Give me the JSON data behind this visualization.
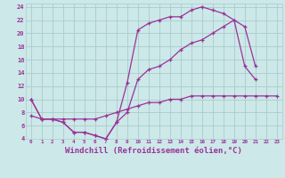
{
  "bg_color": "#cce8e8",
  "grid_color": "#aacccc",
  "line_color": "#993399",
  "xlabel": "Windchill (Refroidissement éolien,°C)",
  "xlabel_fontsize": 6.5,
  "xlim": [
    -0.5,
    23.5
  ],
  "ylim": [
    4,
    24.5
  ],
  "xticks": [
    0,
    1,
    2,
    3,
    4,
    5,
    6,
    7,
    8,
    9,
    10,
    11,
    12,
    13,
    14,
    15,
    16,
    17,
    18,
    19,
    20,
    21,
    22,
    23
  ],
  "yticks": [
    4,
    6,
    8,
    10,
    12,
    14,
    16,
    18,
    20,
    22,
    24
  ],
  "line1_x": [
    0,
    1,
    2,
    3,
    4,
    5,
    6,
    7,
    8,
    9,
    10,
    11,
    12,
    13,
    14,
    15,
    16,
    17,
    18,
    19,
    20,
    21
  ],
  "line1_y": [
    10,
    7,
    7,
    6.5,
    5,
    5,
    4.5,
    4,
    6.5,
    12.5,
    20.5,
    21.5,
    22,
    22.5,
    22.5,
    23.5,
    24,
    23.5,
    23,
    22,
    15,
    13
  ],
  "line2_x": [
    0,
    1,
    2,
    3,
    4,
    5,
    6,
    7,
    8,
    9,
    10,
    11,
    12,
    13,
    14,
    15,
    16,
    17,
    18,
    19,
    20,
    21
  ],
  "line2_y": [
    10,
    7,
    7,
    6.5,
    5,
    5,
    4.5,
    4,
    6.5,
    8,
    13,
    14.5,
    15,
    16,
    17.5,
    18.5,
    19,
    20,
    21,
    22,
    21,
    15
  ],
  "line3_x": [
    0,
    1,
    2,
    3,
    4,
    5,
    6,
    7,
    8,
    9,
    10,
    11,
    12,
    13,
    14,
    15,
    16,
    17,
    18,
    19,
    20,
    21,
    22,
    23
  ],
  "line3_y": [
    7.5,
    7,
    7,
    7,
    7,
    7,
    7,
    7.5,
    8,
    8.5,
    9,
    9.5,
    9.5,
    10,
    10,
    10.5,
    10.5,
    10.5,
    10.5,
    10.5,
    10.5,
    10.5,
    10.5,
    10.5
  ],
  "marker": "+",
  "markersize": 3.5,
  "linewidth": 0.9
}
